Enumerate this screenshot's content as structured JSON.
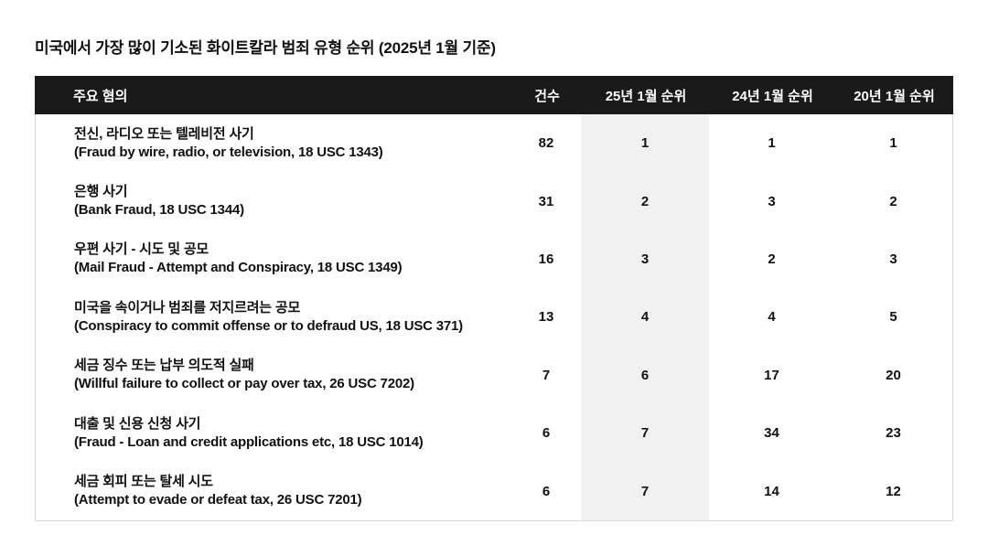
{
  "page": {
    "title": "미국에서 가장 많이 기소된 화이트칼라 범죄 유형 순위 (2025년 1월 기준)"
  },
  "table": {
    "columns": [
      "주요 혐의",
      "건수",
      "25년 1월 순위",
      "24년 1월 순위",
      "20년 1월 순위"
    ],
    "header_bg": "#1a1a1a",
    "header_text_color": "#ffffff",
    "highlight_column": "25년 1월 순위",
    "highlight_color": "#f1f1f1",
    "rows": [
      {
        "charge_ko": "전신, 라디오 또는 텔레비전 사기",
        "charge_en": "(Fraud by wire, radio, or television, 18 USC 1343)",
        "count": "82",
        "rank_2025": "1",
        "rank_2024": "1",
        "rank_2020": "1"
      },
      {
        "charge_ko": "은행 사기",
        "charge_en": "(Bank Fraud, 18 USC 1344)",
        "count": "31",
        "rank_2025": "2",
        "rank_2024": "3",
        "rank_2020": "2"
      },
      {
        "charge_ko": "우편 사기 - 시도 및 공모",
        "charge_en": "(Mail Fraud - Attempt and Conspiracy, 18 USC 1349)",
        "count": "16",
        "rank_2025": "3",
        "rank_2024": "2",
        "rank_2020": "3"
      },
      {
        "charge_ko": "미국을 속이거나 범죄를 저지르려는 공모",
        "charge_en": "(Conspiracy to commit offense or to defraud US, 18 USC 371)",
        "count": "13",
        "rank_2025": "4",
        "rank_2024": "4",
        "rank_2020": "5"
      },
      {
        "charge_ko": "세금 징수 또는 납부 의도적 실패",
        "charge_en": "(Willful failure to collect or pay over tax, 26 USC 7202)",
        "count": "7",
        "rank_2025": "6",
        "rank_2024": "17",
        "rank_2020": "20"
      },
      {
        "charge_ko": "대출 및 신용 신청 사기",
        "charge_en": "(Fraud - Loan and credit applications etc, 18 USC 1014)",
        "count": "6",
        "rank_2025": "7",
        "rank_2024": "34",
        "rank_2020": "23"
      },
      {
        "charge_ko": "세금 회피 또는 탈세 시도",
        "charge_en": "(Attempt to evade or defeat tax, 26 USC 7201)",
        "count": "6",
        "rank_2025": "7",
        "rank_2024": "14",
        "rank_2020": "12"
      }
    ]
  },
  "chart_data": {
    "type": "table",
    "title": "미국에서 가장 많이 기소된 화이트칼라 범죄 유형 순위 (2025년 1월 기준)",
    "columns": [
      "주요 혐의",
      "건수",
      "25년 1월 순위",
      "24년 1월 순위",
      "20년 1월 순위"
    ],
    "rows": [
      [
        "전신, 라디오 또는 텔레비전 사기 (Fraud by wire, radio, or television, 18 USC 1343)",
        82,
        1,
        1,
        1
      ],
      [
        "은행 사기 (Bank Fraud, 18 USC 1344)",
        31,
        2,
        3,
        2
      ],
      [
        "우편 사기 - 시도 및 공모 (Mail Fraud - Attempt and Conspiracy, 18 USC 1349)",
        16,
        3,
        2,
        3
      ],
      [
        "미국을 속이거나 범죄를 저지르려는 공모 (Conspiracy to commit offense or to defraud US, 18 USC 371)",
        13,
        4,
        4,
        5
      ],
      [
        "세금 징수 또는 납부 의도적 실패 (Willful failure to collect or pay over tax, 26 USC 7202)",
        7,
        6,
        17,
        20
      ],
      [
        "대출 및 신용 신청 사기 (Fraud - Loan and credit applications etc, 18 USC 1014)",
        6,
        7,
        34,
        23
      ],
      [
        "세금 회피 또는 탈세 시도 (Attempt to evade or defeat tax, 26 USC 7201)",
        6,
        7,
        14,
        12
      ]
    ],
    "layout_hints": {
      "highlighted_column": "25년 1월 순위",
      "header_style": "black bar, white bold text",
      "grid": "outer light border only, no row separators"
    }
  }
}
